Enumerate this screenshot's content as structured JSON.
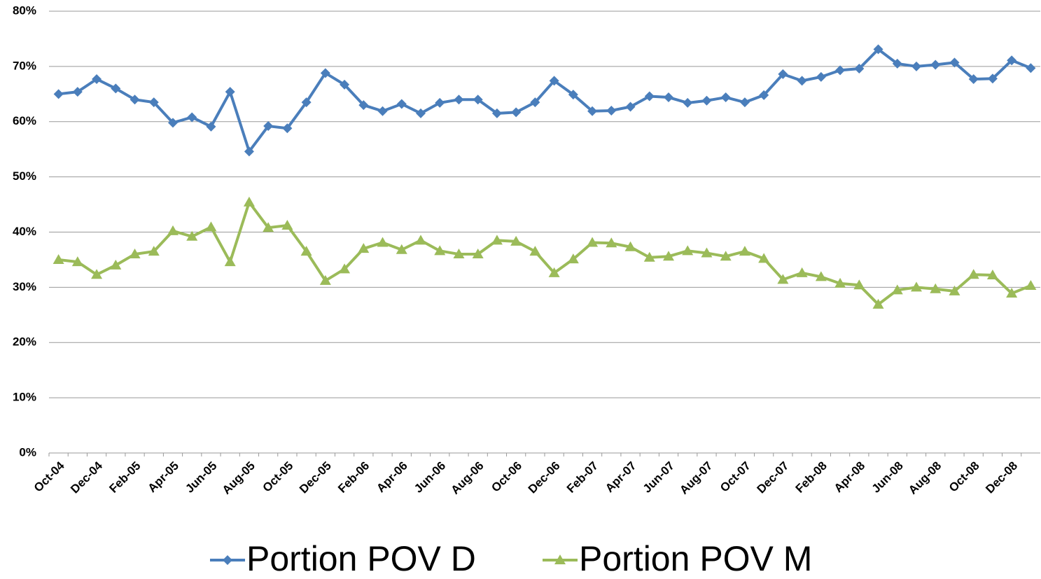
{
  "chart_data": {
    "type": "line",
    "categories": [
      "Oct-04",
      null,
      "Dec-04",
      null,
      "Feb-05",
      null,
      "Apr-05",
      null,
      "Jun-05",
      null,
      "Aug-05",
      null,
      "Oct-05",
      null,
      "Dec-05",
      null,
      "Feb-06",
      null,
      "Apr-06",
      null,
      "Jun-06",
      null,
      "Aug-06",
      null,
      "Oct-06",
      null,
      "Dec-06",
      null,
      "Feb-07",
      null,
      "Apr-07",
      null,
      "Jun-07",
      null,
      "Aug-07",
      null,
      "Oct-07",
      null,
      "Dec-07",
      null,
      "Feb-08",
      null,
      "Apr-08",
      null,
      "Jun-08",
      null,
      "Aug-08",
      null,
      "Oct-08",
      null,
      "Dec-08",
      null
    ],
    "series": [
      {
        "name": "Portion POV D",
        "color": "#4a7ebb",
        "marker": "diamond",
        "values": [
          65.0,
          65.4,
          67.7,
          66.0,
          64.0,
          63.5,
          59.8,
          60.8,
          59.1,
          65.4,
          54.6,
          59.2,
          58.8,
          63.5,
          68.8,
          66.7,
          63.0,
          61.9,
          63.2,
          61.5,
          63.4,
          64.0,
          64.0,
          61.5,
          61.7,
          63.5,
          67.4,
          64.9,
          61.9,
          62.0,
          62.7,
          64.6,
          64.4,
          63.4,
          63.8,
          64.4,
          63.5,
          64.8,
          68.6,
          67.4,
          68.1,
          69.3,
          69.6,
          73.1,
          70.5,
          70.0,
          70.3,
          70.7,
          67.7,
          67.8,
          71.1,
          69.7
        ]
      },
      {
        "name": "Portion POV M",
        "color": "#9bbb59",
        "marker": "triangle",
        "values": [
          35.0,
          34.6,
          32.3,
          34.0,
          36.0,
          36.5,
          40.2,
          39.2,
          40.9,
          34.6,
          45.4,
          40.8,
          41.2,
          36.5,
          31.2,
          33.3,
          37.0,
          38.1,
          36.8,
          38.5,
          36.6,
          36.0,
          36.0,
          38.5,
          38.3,
          36.5,
          32.6,
          35.1,
          38.1,
          38.0,
          37.3,
          35.4,
          35.6,
          36.6,
          36.2,
          35.6,
          36.5,
          35.2,
          31.4,
          32.6,
          31.9,
          30.7,
          30.4,
          26.9,
          29.5,
          30.0,
          29.7,
          29.3,
          32.3,
          32.2,
          28.9,
          30.3
        ]
      }
    ],
    "ylim": [
      0,
      80
    ],
    "yticks": [
      {
        "value": 0,
        "label": "0%"
      },
      {
        "value": 10,
        "label": "10%"
      },
      {
        "value": 20,
        "label": "20%"
      },
      {
        "value": 30,
        "label": "30%"
      },
      {
        "value": 40,
        "label": "40%"
      },
      {
        "value": 50,
        "label": "50%"
      },
      {
        "value": 60,
        "label": "60%"
      },
      {
        "value": 70,
        "label": "70%"
      },
      {
        "value": 80,
        "label": "80%"
      }
    ],
    "grid": true,
    "legend": "bottom"
  }
}
